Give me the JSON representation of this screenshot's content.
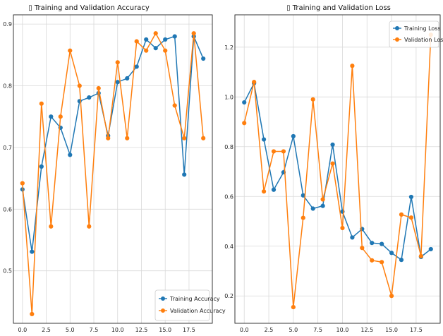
{
  "chart_data": [
    {
      "type": "line",
      "title": "▯ Training and Validation Accuracy",
      "xlabel": "",
      "ylabel": "",
      "xlim": [
        -0.95,
        19.95
      ],
      "ylim": [
        0.415,
        0.915
      ],
      "xticks": [
        0.0,
        2.5,
        5.0,
        7.5,
        10.0,
        12.5,
        15.0,
        17.5
      ],
      "xtick_labels": [
        "0.0",
        "2.5",
        "5.0",
        "7.5",
        "10.0",
        "12.5",
        "15.0",
        "17.5"
      ],
      "yticks": [
        0.5,
        0.6,
        0.7,
        0.8,
        0.9
      ],
      "ytick_labels": [
        "0.5",
        "0.6",
        "0.7",
        "0.8",
        "0.9"
      ],
      "grid": true,
      "legend_position": "bottom-right",
      "series": [
        {
          "name": "Training Accuracy",
          "color": "#1f77b4",
          "x": [
            0,
            1,
            2,
            3,
            4,
            5,
            6,
            7,
            8,
            9,
            10,
            11,
            12,
            13,
            14,
            15,
            16,
            17,
            18,
            19
          ],
          "values": [
            0.632,
            0.531,
            0.669,
            0.75,
            0.732,
            0.688,
            0.775,
            0.781,
            0.788,
            0.719,
            0.806,
            0.812,
            0.831,
            0.875,
            0.861,
            0.875,
            0.88,
            0.656,
            0.88,
            0.844
          ]
        },
        {
          "name": "Validation Accuracy",
          "color": "#ff7f0e",
          "x": [
            0,
            1,
            2,
            3,
            4,
            5,
            6,
            7,
            8,
            9,
            10,
            11,
            12,
            13,
            14,
            15,
            16,
            17,
            18,
            19
          ],
          "values": [
            0.642,
            0.43,
            0.771,
            0.572,
            0.75,
            0.857,
            0.8,
            0.572,
            0.796,
            0.715,
            0.838,
            0.715,
            0.872,
            0.857,
            0.885,
            0.857,
            0.768,
            0.715,
            0.885,
            0.715
          ]
        }
      ]
    },
    {
      "type": "line",
      "title": "▯ Training and Validation Loss",
      "xlabel": "",
      "ylabel": "",
      "xlim": [
        -0.95,
        19.95
      ],
      "ylim": [
        0.09,
        1.33
      ],
      "xticks": [
        0.0,
        2.5,
        5.0,
        7.5,
        10.0,
        12.5,
        15.0,
        17.5
      ],
      "xtick_labels": [
        "0.0",
        "2.5",
        "5.0",
        "7.5",
        "10.0",
        "12.5",
        "15.0",
        "17.5"
      ],
      "yticks": [
        0.2,
        0.4,
        0.6,
        0.8,
        1.0,
        1.2
      ],
      "ytick_labels": [
        "0.2",
        "0.4",
        "0.6",
        "0.8",
        "1.0",
        "1.2"
      ],
      "grid": true,
      "legend_position": "top-right",
      "series": [
        {
          "name": "Training Loss",
          "color": "#1f77b4",
          "x": [
            0,
            1,
            2,
            3,
            4,
            5,
            6,
            7,
            8,
            9,
            10,
            11,
            12,
            13,
            14,
            15,
            16,
            17,
            18,
            19
          ],
          "values": [
            0.978,
            1.055,
            0.829,
            0.627,
            0.697,
            0.842,
            0.604,
            0.551,
            0.562,
            0.808,
            0.539,
            0.435,
            0.469,
            0.413,
            0.409,
            0.373,
            0.345,
            0.598,
            0.357,
            0.388
          ]
        },
        {
          "name": "Validation Loss",
          "color": "#ff7f0e",
          "x": [
            0,
            1,
            2,
            3,
            4,
            5,
            6,
            7,
            8,
            9,
            10,
            11,
            12,
            13,
            14,
            15,
            16,
            17,
            18,
            19
          ],
          "values": [
            0.895,
            1.06,
            0.62,
            0.781,
            0.781,
            0.155,
            0.514,
            0.99,
            0.588,
            0.732,
            0.473,
            1.125,
            0.393,
            0.343,
            0.336,
            0.2,
            0.527,
            0.515,
            0.36,
            1.25
          ]
        }
      ]
    }
  ]
}
